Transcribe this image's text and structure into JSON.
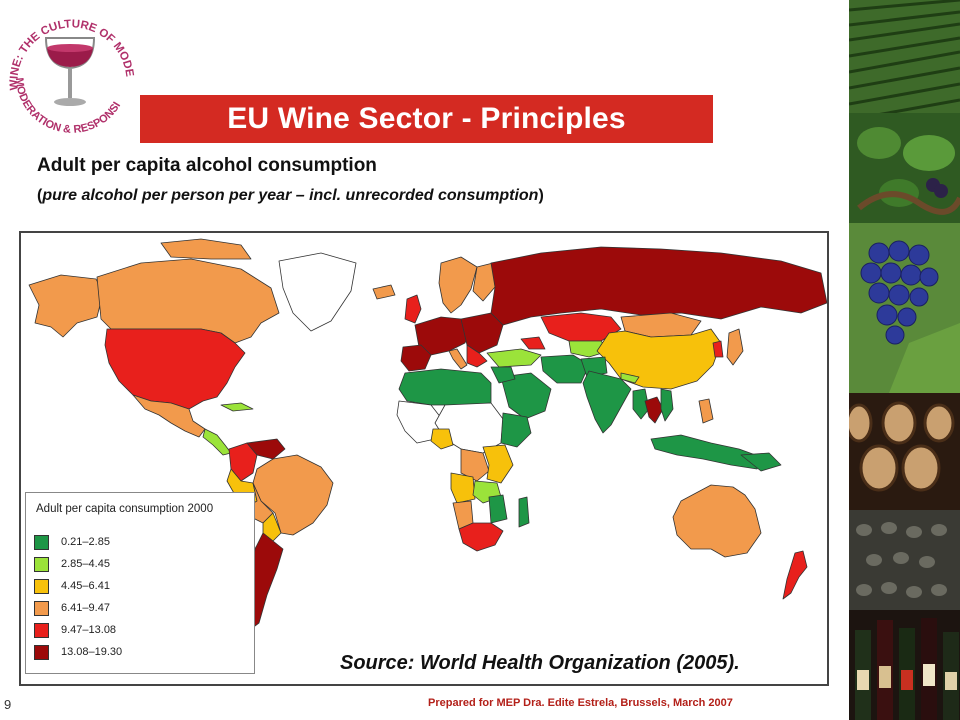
{
  "logo": {
    "ring_text_top": "WINE: THE CULTURE OF MODERATION",
    "ring_text_bottom": "MODERATION & RESPONSIBILITY",
    "icon": "wine-glass-icon"
  },
  "title": "EU Wine Sector - Principles",
  "heading": "Adult per capita alcohol consumption",
  "subheading": {
    "open": "(",
    "italic": "pure alcohol per person per year – incl. unrecorded consumption",
    "close": ")"
  },
  "map": {
    "legend_title": "Adult per capita consumption 2000",
    "legend": [
      {
        "label": "0.21–2.85",
        "color": "#1e9646"
      },
      {
        "label": "2.85–4.45",
        "color": "#9be33a"
      },
      {
        "label": "4.45–6.41",
        "color": "#f7c10b"
      },
      {
        "label": "6.41–9.47",
        "color": "#f29a4c"
      },
      {
        "label": "9.47–13.08",
        "color": "#e8201c"
      },
      {
        "label": "13.08–19.30",
        "color": "#9c0a0a"
      }
    ]
  },
  "source": "Source: World Health Organization (2005).",
  "slide_number": "9",
  "footer": "Prepared for MEP Dra. Edite Estrela,  Brussels, March 2007",
  "photos": [
    "vineyard-rows",
    "grapevine",
    "blue-grapes",
    "wine-barrels",
    "bottle-cellar",
    "wine-bottles"
  ]
}
